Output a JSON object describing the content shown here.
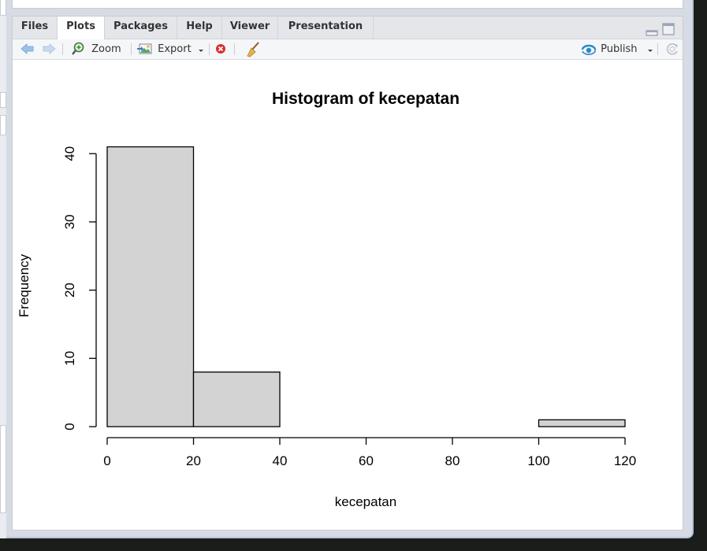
{
  "tabs": [
    {
      "label": "Files"
    },
    {
      "label": "Plots"
    },
    {
      "label": "Packages"
    },
    {
      "label": "Help"
    },
    {
      "label": "Viewer"
    },
    {
      "label": "Presentation"
    }
  ],
  "active_tab": "Plots",
  "toolbar": {
    "zoom_label": "Zoom",
    "export_label": "Export",
    "publish_label": "Publish"
  },
  "colors": {
    "bar_fill": "#d3d3d3",
    "tab_active": "#ffffff",
    "accent": "#2b8ac8"
  },
  "chart_data": {
    "type": "bar",
    "title": "Histogram of kecepatan",
    "xlabel": "kecepatan",
    "ylabel": "Frequency",
    "bins": [
      [
        0,
        20
      ],
      [
        20,
        40
      ],
      [
        40,
        60
      ],
      [
        60,
        80
      ],
      [
        80,
        100
      ],
      [
        100,
        120
      ]
    ],
    "values": [
      41,
      8,
      0,
      0,
      0,
      1
    ],
    "xlim": [
      0,
      120
    ],
    "ylim": [
      0,
      41
    ],
    "x_ticks": [
      "0",
      "20",
      "40",
      "60",
      "80",
      "100",
      "120"
    ],
    "y_ticks": [
      "0",
      "10",
      "20",
      "30",
      "40"
    ],
    "grid": false
  }
}
